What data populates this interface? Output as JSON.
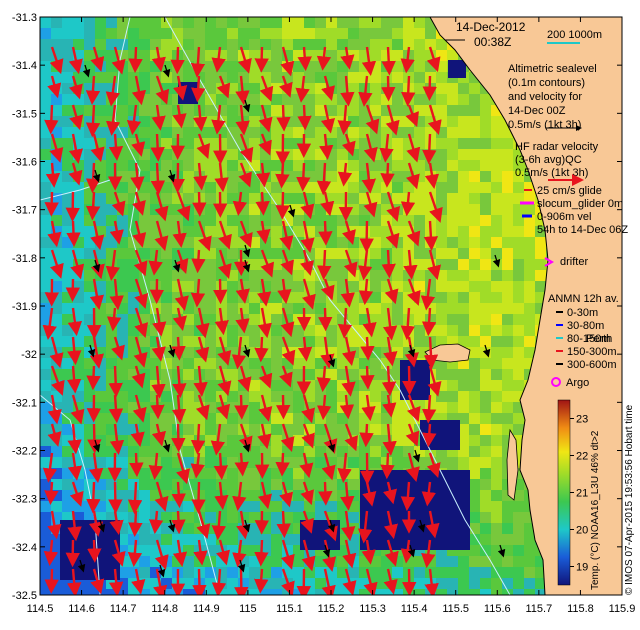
{
  "header": {
    "date": "14-Dec-2012",
    "time": "00:38Z",
    "scale_label": "200 1000m"
  },
  "legend": {
    "altimetry_lines": [
      "Altimetric sealevel",
      "(0.1m contours)",
      "and velocity for",
      "14-Dec 00Z",
      "0.5m/s (1kt 3h)"
    ],
    "hf_lines": [
      "HF radar velocity",
      "(3-6h avg)QC",
      "0.5m/s (1kt 3h)"
    ],
    "glider_lines": [
      "25 cm/s glide",
      "slocum_glider 0m",
      "0-906m vel",
      "54h to 14-Dec 06Z"
    ],
    "drifter": "drifter",
    "anmn_title": "ANMN 12h av.",
    "anmn_items": [
      "0-30m",
      "30-80m",
      "80-150m",
      "150-300m",
      "300-600m"
    ],
    "argo": "Argo",
    "place": "Perth"
  },
  "colorbar": {
    "title": "Temp. (°C) NOAA16_L3U 46% dt>2",
    "ticks": [
      "23",
      "22",
      "21",
      "20",
      "19"
    ],
    "min": 18.5,
    "max": 23.5
  },
  "credit": "© IMOS 07-Apr-2015 19:53:56 Hobart time",
  "axes": {
    "lon_ticks": [
      "114.5",
      "114.6",
      "114.7",
      "114.8",
      "114.9",
      "115",
      "115.1",
      "115.2",
      "115.3",
      "115.4",
      "115.5",
      "115.6",
      "115.7",
      "115.8",
      "115.9"
    ],
    "lat_ticks": [
      "-31.3",
      "-31.4",
      "-31.5",
      "-31.6",
      "-31.7",
      "-31.8",
      "-31.9",
      "-32",
      "-32.1",
      "-32.2",
      "-32.3",
      "-32.4",
      "-32.5"
    ],
    "lon_range": [
      114.5,
      115.9
    ],
    "lat_range": [
      -32.5,
      -31.3
    ]
  },
  "colors": {
    "land": "#f8c896",
    "arrow_hf": "#e8141e",
    "sea_warm": "#78c83c",
    "sea_cool": "#28b4c8",
    "deep_patch": "#10147a"
  }
}
